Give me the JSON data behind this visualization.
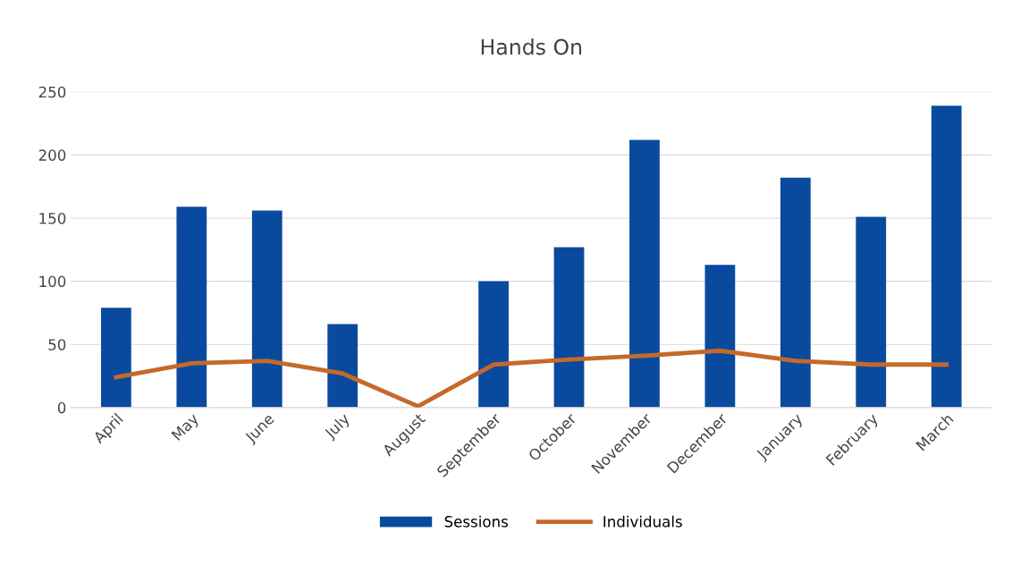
{
  "chart_data": {
    "type": "bar",
    "title": "Hands On",
    "categories": [
      "April",
      "May",
      "June",
      "July",
      "August",
      "September",
      "October",
      "November",
      "December",
      "January",
      "February",
      "March"
    ],
    "series": [
      {
        "name": "Sessions",
        "color": "#0a4a9e",
        "values": [
          79,
          159,
          156,
          66,
          0,
          100,
          127,
          212,
          113,
          182,
          151,
          239
        ]
      },
      {
        "name": "Individuals",
        "type": "line",
        "color": "#c5692a",
        "values": [
          24,
          35,
          37,
          27,
          1,
          34,
          38,
          41,
          45,
          37,
          34,
          34
        ]
      }
    ],
    "ylim": [
      0,
      250
    ],
    "yticks": [
      0,
      50,
      100,
      150,
      200,
      250
    ],
    "grid": "y",
    "legend": "bottom",
    "marker": "none",
    "line_style": "solid"
  }
}
